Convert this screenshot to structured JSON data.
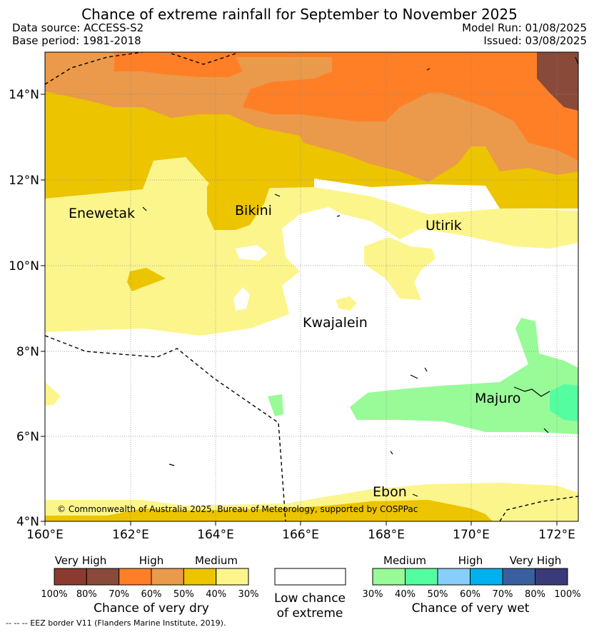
{
  "header": {
    "title": "Chance of extreme rainfall for September to November 2025",
    "data_source": "Data source: ACCESS-S2",
    "base_period": "Base period: 1981-2018",
    "model_run": "Model Run: 01/08/2025",
    "issued": "Issued: 03/08/2025"
  },
  "map": {
    "x_ticks": [
      "160°E",
      "162°E",
      "164°E",
      "166°E",
      "168°E",
      "170°E",
      "172°E"
    ],
    "y_ticks": [
      "14°N",
      "12°N",
      "10°N",
      "8°N",
      "6°N",
      "4°N"
    ],
    "places": [
      "Enewetak",
      "Bikini",
      "Utirik",
      "Kwajalein",
      "Majuro",
      "Ebon"
    ],
    "copyright": "© Commonwealth of Australia 2025, Bureau of Meteorology, supported by COSPPac"
  },
  "legend_dry": {
    "labels": [
      "Very High",
      "High",
      "Medium"
    ],
    "percents": [
      "100%",
      "80%",
      "70%",
      "60%",
      "50%",
      "40%",
      "30%"
    ],
    "colors": [
      "#8b3a2f",
      "#8a4a39",
      "#ff7f27",
      "#ea9a4a",
      "#ecc400",
      "#fcf58c"
    ],
    "title": "Chance of very dry"
  },
  "legend_neutral": {
    "line1": "Low chance",
    "line2": "of extreme",
    "color": "#ffffff"
  },
  "legend_wet": {
    "labels": [
      "Medium",
      "High",
      "Very High"
    ],
    "percents": [
      "30%",
      "40%",
      "50%",
      "60%",
      "70%",
      "80%",
      "100%"
    ],
    "colors": [
      "#98fb98",
      "#54fda0",
      "#87cefa",
      "#00b0ef",
      "#3a5f9f",
      "#3b3a79"
    ],
    "title": "Chance of very wet"
  },
  "footnote": "-- -- -- EEZ border V11 (Flanders Marine Institute, 2019)."
}
